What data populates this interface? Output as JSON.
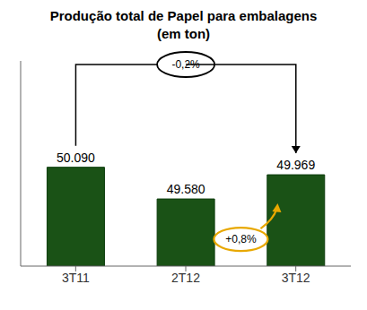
{
  "chart_data": {
    "type": "bar",
    "title": "Produção total de Papel para embalagens",
    "subtitle": "(em ton)",
    "categories": [
      "3T11",
      "2T12",
      "3T12"
    ],
    "values": [
      50090,
      49580,
      49969
    ],
    "value_labels": [
      "50.090",
      "49.580",
      "49.969"
    ],
    "data_labels": true,
    "color": "#1a5216",
    "ylim": [
      48500,
      51800
    ],
    "tick_labels": "x",
    "grid": false,
    "annotations": [
      "-0,2%",
      "+0,8%"
    ]
  }
}
